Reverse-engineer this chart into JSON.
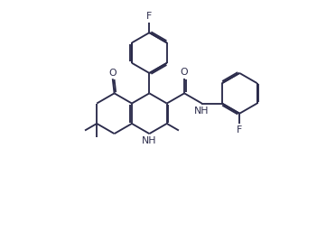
{
  "background": "#ffffff",
  "line_color": "#2b2b4b",
  "line_width": 1.35,
  "figsize": [
    3.51,
    2.67
  ],
  "dpi": 100,
  "xlim": [
    0.0,
    9.5
  ],
  "ylim": [
    0.5,
    9.0
  ],
  "font_size": 7.8,
  "font_family": "DejaVu Sans"
}
